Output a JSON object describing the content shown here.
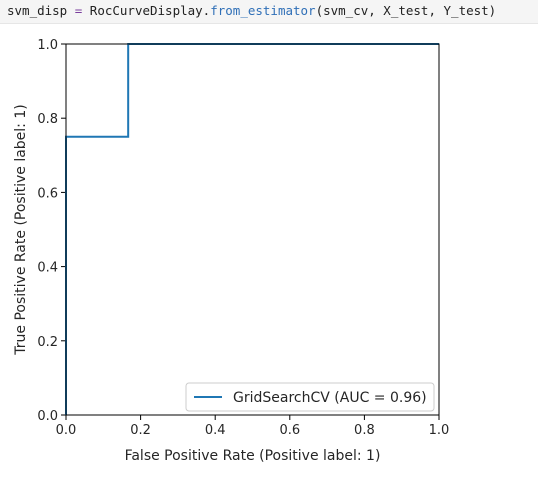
{
  "code": {
    "var": "svm_disp",
    "op": " = ",
    "obj": "RocCurveDisplay.",
    "method": "from_estimator",
    "args": "(svm_cv, X_test, Y_test)"
  },
  "chart_data": {
    "type": "line",
    "title": "",
    "xlabel": "False Positive Rate (Positive label: 1)",
    "ylabel": "True Positive Rate (Positive label: 1)",
    "xlim": [
      0.0,
      1.0
    ],
    "ylim": [
      0.0,
      1.0
    ],
    "xticks": [
      "0.0",
      "0.2",
      "0.4",
      "0.6",
      "0.8",
      "1.0"
    ],
    "yticks": [
      "0.0",
      "0.2",
      "0.4",
      "0.6",
      "0.8",
      "1.0"
    ],
    "grid": false,
    "legend_position": "lower-right",
    "series": [
      {
        "name": "GridSearchCV (AUC = 0.96)",
        "color": "#1f77b4",
        "x": [
          0.0,
          0.0,
          0.0,
          0.1667,
          0.1667,
          1.0
        ],
        "y": [
          0.0,
          0.25,
          0.75,
          0.75,
          1.0,
          1.0
        ]
      }
    ]
  }
}
